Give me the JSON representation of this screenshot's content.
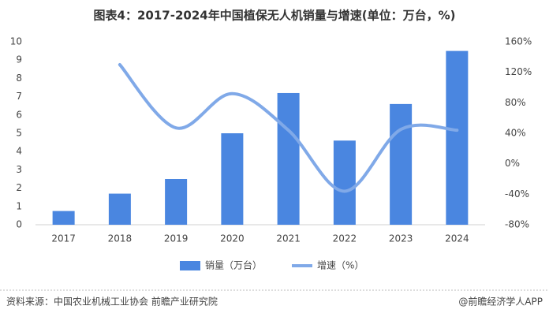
{
  "chart_data": {
    "type": "bar-line",
    "title": "图表4：2017-2024年中国植保无人机销量与增速(单位：万台，%)",
    "categories": [
      "2017",
      "2018",
      "2019",
      "2020",
      "2021",
      "2022",
      "2023",
      "2024"
    ],
    "series": [
      {
        "name": "销量（万台）",
        "color": "#4a86e0",
        "type": "bar",
        "values": [
          0.75,
          1.7,
          2.5,
          5.0,
          7.2,
          4.6,
          6.6,
          9.5
        ]
      },
      {
        "name": "增速（%）",
        "color": "#80a9e8",
        "type": "line",
        "axis": "y2",
        "values": [
          null,
          130,
          47,
          92,
          44,
          -36,
          45,
          44
        ]
      }
    ],
    "ylim": [
      0,
      10
    ],
    "yticks": [
      0,
      1,
      2,
      3,
      4,
      5,
      6,
      7,
      8,
      9,
      10
    ],
    "y2lim": [
      -80,
      160
    ],
    "y2ticks": [
      {
        "value": -80,
        "label": "-80%"
      },
      {
        "value": -40,
        "label": "-40%"
      },
      {
        "value": 0,
        "label": "0%"
      },
      {
        "value": 40,
        "label": "40%"
      },
      {
        "value": 80,
        "label": "80%"
      },
      {
        "value": 120,
        "label": "120%"
      },
      {
        "value": 160,
        "label": "160%"
      }
    ],
    "source": "资料来源：中国农业机械工业协会 前瞻产业研究院",
    "credit": "@前瞻经济学人APP"
  }
}
